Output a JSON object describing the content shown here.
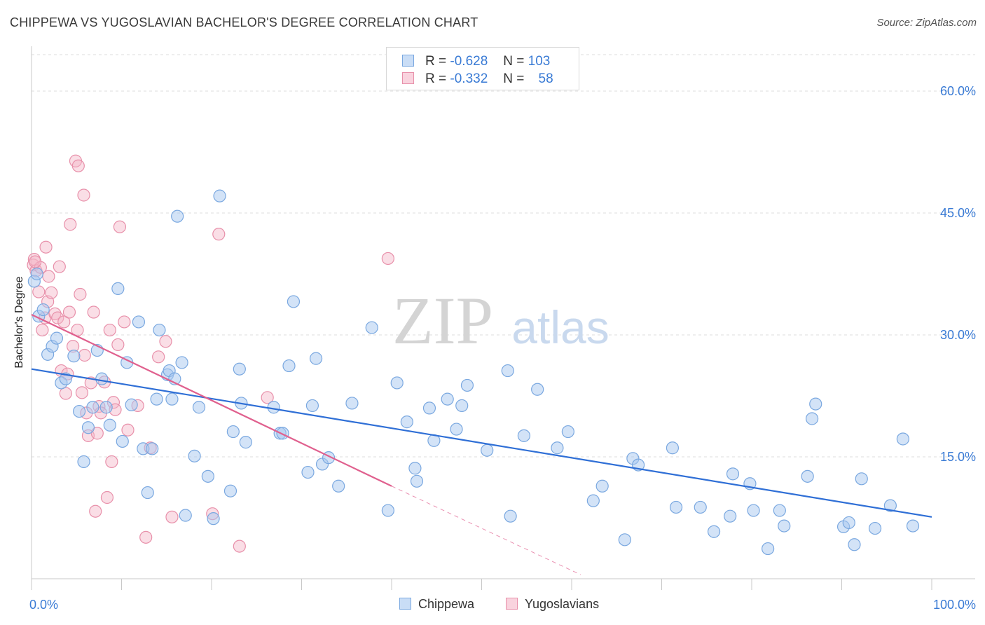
{
  "header": {
    "title": "CHIPPEWA VS YUGOSLAVIAN BACHELOR'S DEGREE CORRELATION CHART",
    "source": "Source: ZipAtlas.com"
  },
  "watermark": {
    "zip": "ZIP",
    "atlas": "atlas"
  },
  "legend_top": {
    "rows": [
      {
        "r_label": "R =",
        "r_value": "-0.628",
        "n_label": "N =",
        "n_value": "103",
        "color": "#a8c8f0"
      },
      {
        "r_label": "R =",
        "r_value": "-0.332",
        "n_label": "N =",
        "n_value": "58",
        "color": "#f4b6c8"
      }
    ]
  },
  "legend_bottom": {
    "items": [
      "Chippewa",
      "Yugoslavians"
    ]
  },
  "colors": {
    "chippewa_fill": "#a8c8f0",
    "chippewa_stroke": "#7aa8e0",
    "chippewa_line": "#2f6fd6",
    "yugo_fill": "#f4b6c8",
    "yugo_stroke": "#e890aa",
    "yugo_line": "#e0608e",
    "axis_text": "#3a7bd5"
  },
  "chart_data": {
    "type": "scatter",
    "title": "CHIPPEWA VS YUGOSLAVIAN BACHELOR'S DEGREE CORRELATION CHART",
    "xlabel": "",
    "ylabel": "Bachelor's Degree",
    "xlim": [
      0,
      100
    ],
    "ylim": [
      0,
      65
    ],
    "x_tick_labels": [
      "0.0%",
      "100.0%"
    ],
    "y_ticks": [
      15,
      30,
      45,
      60
    ],
    "y_tick_labels": [
      "15.0%",
      "30.0%",
      "45.0%",
      "60.0%"
    ],
    "grid": true,
    "legend_position": "top-center",
    "series": [
      {
        "name": "Chippewa",
        "r": -0.628,
        "n": 103,
        "trend": {
          "x": [
            0,
            100
          ],
          "y": [
            25.8,
            7.6
          ]
        },
        "points": [
          [
            0.8,
            32.3
          ],
          [
            1.3,
            33.1
          ],
          [
            1.8,
            27.6
          ],
          [
            2.3,
            28.6
          ],
          [
            2.8,
            29.6
          ],
          [
            3.3,
            24.1
          ],
          [
            3.8,
            24.6
          ],
          [
            4.7,
            27.4
          ],
          [
            5.3,
            20.6
          ],
          [
            5.8,
            14.4
          ],
          [
            6.3,
            18.6
          ],
          [
            6.8,
            21.1
          ],
          [
            7.3,
            28.1
          ],
          [
            7.8,
            24.6
          ],
          [
            8.3,
            21.1
          ],
          [
            8.7,
            18.9
          ],
          [
            9.6,
            35.7
          ],
          [
            10.1,
            16.9
          ],
          [
            10.6,
            26.6
          ],
          [
            11.1,
            21.4
          ],
          [
            11.9,
            31.6
          ],
          [
            12.4,
            16.0
          ],
          [
            12.9,
            10.6
          ],
          [
            13.4,
            16.0
          ],
          [
            13.9,
            22.1
          ],
          [
            14.2,
            30.6
          ],
          [
            15.1,
            25.1
          ],
          [
            15.3,
            25.6
          ],
          [
            15.6,
            22.1
          ],
          [
            15.9,
            24.6
          ],
          [
            16.2,
            44.6
          ],
          [
            16.7,
            26.6
          ],
          [
            17.1,
            7.8
          ],
          [
            18.1,
            15.1
          ],
          [
            18.6,
            21.1
          ],
          [
            19.6,
            12.6
          ],
          [
            20.2,
            7.4
          ],
          [
            20.9,
            47.1
          ],
          [
            22.1,
            10.8
          ],
          [
            22.4,
            18.1
          ],
          [
            23.1,
            25.8
          ],
          [
            23.3,
            21.6
          ],
          [
            23.8,
            16.8
          ],
          [
            26.9,
            21.1
          ],
          [
            27.6,
            17.9
          ],
          [
            27.9,
            17.9
          ],
          [
            28.6,
            26.2
          ],
          [
            29.1,
            34.1
          ],
          [
            30.7,
            13.1
          ],
          [
            31.2,
            21.3
          ],
          [
            31.6,
            27.1
          ],
          [
            32.3,
            14.1
          ],
          [
            33.0,
            14.9
          ],
          [
            34.1,
            11.4
          ],
          [
            35.6,
            21.6
          ],
          [
            37.8,
            30.9
          ],
          [
            39.6,
            8.4
          ],
          [
            40.6,
            24.1
          ],
          [
            41.7,
            19.3
          ],
          [
            42.6,
            13.6
          ],
          [
            42.8,
            12.0
          ],
          [
            44.2,
            21.0
          ],
          [
            44.7,
            17.0
          ],
          [
            46.2,
            22.1
          ],
          [
            47.2,
            18.4
          ],
          [
            47.8,
            21.3
          ],
          [
            48.4,
            23.8
          ],
          [
            50.6,
            15.8
          ],
          [
            52.9,
            25.6
          ],
          [
            53.2,
            7.7
          ],
          [
            54.7,
            17.6
          ],
          [
            56.2,
            23.3
          ],
          [
            58.4,
            16.1
          ],
          [
            59.6,
            18.1
          ],
          [
            62.4,
            9.6
          ],
          [
            63.4,
            11.4
          ],
          [
            65.9,
            4.8
          ],
          [
            66.8,
            14.8
          ],
          [
            67.4,
            14.0
          ],
          [
            71.2,
            16.1
          ],
          [
            71.6,
            8.8
          ],
          [
            74.3,
            8.8
          ],
          [
            75.8,
            5.8
          ],
          [
            77.6,
            7.7
          ],
          [
            77.9,
            12.9
          ],
          [
            79.8,
            11.7
          ],
          [
            80.2,
            8.4
          ],
          [
            81.8,
            3.7
          ],
          [
            83.1,
            8.4
          ],
          [
            83.6,
            6.5
          ],
          [
            86.2,
            12.6
          ],
          [
            86.7,
            19.7
          ],
          [
            87.1,
            21.5
          ],
          [
            90.2,
            6.4
          ],
          [
            90.8,
            6.9
          ],
          [
            91.4,
            4.2
          ],
          [
            92.2,
            12.3
          ],
          [
            93.7,
            6.2
          ],
          [
            95.4,
            9.0
          ],
          [
            96.8,
            17.2
          ],
          [
            97.9,
            6.5
          ],
          [
            0.3,
            36.6
          ],
          [
            0.6,
            37.5
          ]
        ]
      },
      {
        "name": "Yugoslavians",
        "r": -0.332,
        "n": 58,
        "trend": {
          "x": [
            0,
            40
          ],
          "y": [
            32.5,
            11.4
          ]
        },
        "trend_dashed": {
          "x": [
            40,
            61
          ],
          "y": [
            11.4,
            0.5
          ]
        },
        "points": [
          [
            0.2,
            38.6
          ],
          [
            0.3,
            39.3
          ],
          [
            0.5,
            37.9
          ],
          [
            0.8,
            35.3
          ],
          [
            1.0,
            38.3
          ],
          [
            1.2,
            30.6
          ],
          [
            1.5,
            32.1
          ],
          [
            1.6,
            40.8
          ],
          [
            1.8,
            34.1
          ],
          [
            1.9,
            37.2
          ],
          [
            2.2,
            35.2
          ],
          [
            2.6,
            32.6
          ],
          [
            2.9,
            32.1
          ],
          [
            3.1,
            38.4
          ],
          [
            3.3,
            25.6
          ],
          [
            3.6,
            31.6
          ],
          [
            3.8,
            22.8
          ],
          [
            4.0,
            25.2
          ],
          [
            4.2,
            32.8
          ],
          [
            4.3,
            43.6
          ],
          [
            4.6,
            28.6
          ],
          [
            4.9,
            51.4
          ],
          [
            5.1,
            30.6
          ],
          [
            5.2,
            50.8
          ],
          [
            5.4,
            35.0
          ],
          [
            5.6,
            22.9
          ],
          [
            5.8,
            47.2
          ],
          [
            6.1,
            20.4
          ],
          [
            6.3,
            17.6
          ],
          [
            6.6,
            24.1
          ],
          [
            6.9,
            32.8
          ],
          [
            7.1,
            8.3
          ],
          [
            7.3,
            17.9
          ],
          [
            7.5,
            21.2
          ],
          [
            7.7,
            20.4
          ],
          [
            8.1,
            24.2
          ],
          [
            8.4,
            10.0
          ],
          [
            8.7,
            30.6
          ],
          [
            8.9,
            14.4
          ],
          [
            9.1,
            21.7
          ],
          [
            9.3,
            20.8
          ],
          [
            9.6,
            28.8
          ],
          [
            9.8,
            43.3
          ],
          [
            10.3,
            31.6
          ],
          [
            10.7,
            18.3
          ],
          [
            11.8,
            21.3
          ],
          [
            12.7,
            5.1
          ],
          [
            13.2,
            16.1
          ],
          [
            14.1,
            27.3
          ],
          [
            14.9,
            29.2
          ],
          [
            15.6,
            7.6
          ],
          [
            20.1,
            8.0
          ],
          [
            20.8,
            42.4
          ],
          [
            23.1,
            4.0
          ],
          [
            26.2,
            22.3
          ],
          [
            39.6,
            39.4
          ],
          [
            0.4,
            39.0
          ],
          [
            5.9,
            27.5
          ]
        ]
      }
    ]
  }
}
